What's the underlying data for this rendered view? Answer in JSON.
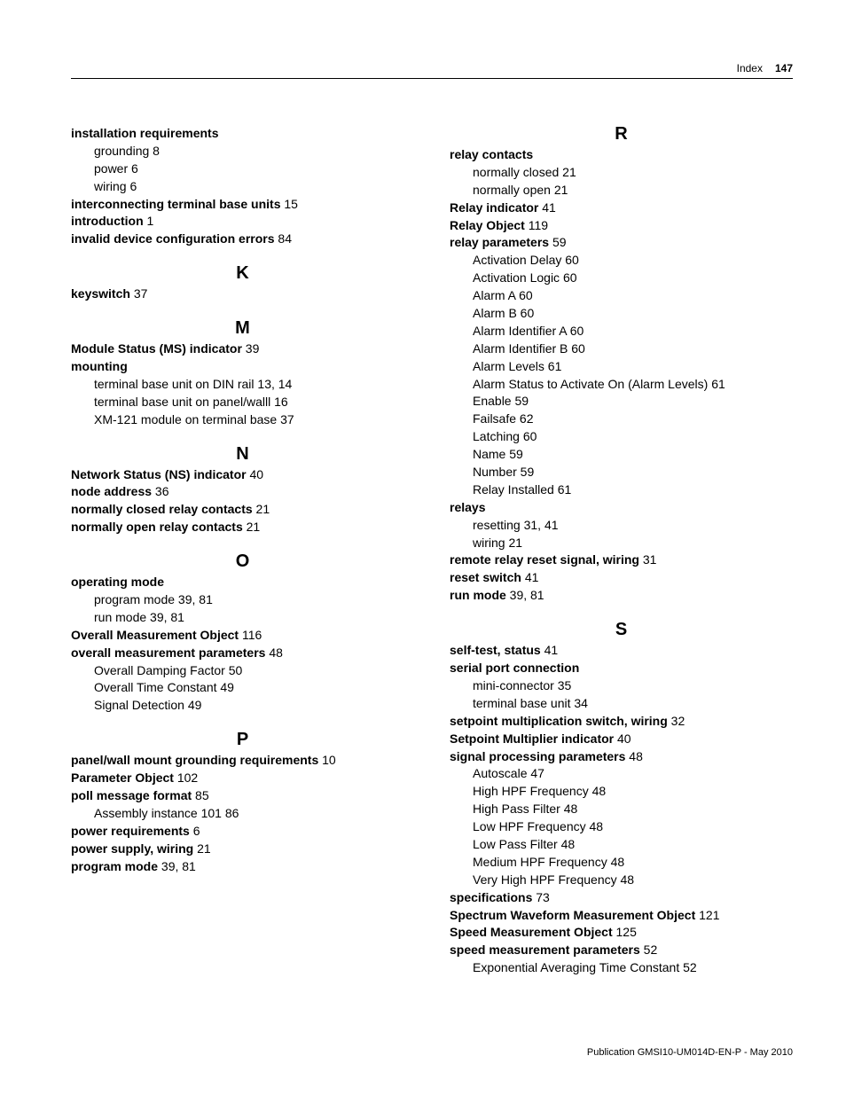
{
  "header": {
    "label": "Index",
    "page": "147"
  },
  "footer": {
    "text": "Publication GMSI10-UM014D-EN-P - May 2010"
  },
  "left": [
    {
      "type": "entry",
      "term": "installation requirements",
      "pages": ""
    },
    {
      "type": "sub",
      "text": "grounding 8"
    },
    {
      "type": "sub",
      "text": "power 6"
    },
    {
      "type": "sub",
      "text": "wiring 6"
    },
    {
      "type": "entry",
      "term": "interconnecting terminal base units",
      "pages": " 15"
    },
    {
      "type": "entry",
      "term": "introduction",
      "pages": " 1"
    },
    {
      "type": "entry",
      "term": "invalid device configuration errors",
      "pages": " 84"
    },
    {
      "type": "letter",
      "text": "K"
    },
    {
      "type": "entry",
      "term": "keyswitch",
      "pages": " 37"
    },
    {
      "type": "letter",
      "text": "M"
    },
    {
      "type": "entry",
      "term": "Module Status (MS) indicator",
      "pages": " 39"
    },
    {
      "type": "entry",
      "term": "mounting",
      "pages": ""
    },
    {
      "type": "sub",
      "text": "terminal base unit on DIN rail 13, 14"
    },
    {
      "type": "sub",
      "text": "terminal base unit on panel/walll 16"
    },
    {
      "type": "sub",
      "text": "XM-121 module on terminal base 37"
    },
    {
      "type": "letter",
      "text": "N"
    },
    {
      "type": "entry",
      "term": "Network Status (NS) indicator",
      "pages": " 40"
    },
    {
      "type": "entry",
      "term": "node address",
      "pages": " 36"
    },
    {
      "type": "entry",
      "term": "normally closed relay contacts",
      "pages": " 21"
    },
    {
      "type": "entry",
      "term": "normally open relay contacts",
      "pages": " 21"
    },
    {
      "type": "letter",
      "text": "O"
    },
    {
      "type": "entry",
      "term": "operating mode",
      "pages": ""
    },
    {
      "type": "sub",
      "text": "program mode 39, 81"
    },
    {
      "type": "sub",
      "text": "run mode 39, 81"
    },
    {
      "type": "entry",
      "term": "Overall Measurement Object",
      "pages": " 116"
    },
    {
      "type": "entry",
      "term": "overall measurement parameters",
      "pages": " 48"
    },
    {
      "type": "sub",
      "text": "Overall Damping Factor 50"
    },
    {
      "type": "sub",
      "text": "Overall Time Constant 49"
    },
    {
      "type": "sub",
      "text": "Signal Detection 49"
    },
    {
      "type": "letter",
      "text": "P"
    },
    {
      "type": "entry",
      "term": "panel/wall mount grounding requirements",
      "pages": " 10"
    },
    {
      "type": "entry",
      "term": "Parameter Object",
      "pages": " 102"
    },
    {
      "type": "entry",
      "term": "poll message format",
      "pages": " 85"
    },
    {
      "type": "sub",
      "text": "Assembly instance 101 86"
    },
    {
      "type": "entry",
      "term": "power requirements",
      "pages": " 6"
    },
    {
      "type": "entry",
      "term": "power supply, wiring",
      "pages": " 21"
    },
    {
      "type": "entry",
      "term": "program mode",
      "pages": " 39, 81"
    }
  ],
  "right": [
    {
      "type": "letter",
      "text": "R"
    },
    {
      "type": "entry",
      "term": "relay contacts",
      "pages": ""
    },
    {
      "type": "sub",
      "text": "normally closed 21"
    },
    {
      "type": "sub",
      "text": "normally open 21"
    },
    {
      "type": "entry",
      "term": "Relay indicator",
      "pages": " 41"
    },
    {
      "type": "entry",
      "term": "Relay Object",
      "pages": " 119"
    },
    {
      "type": "entry",
      "term": "relay parameters",
      "pages": " 59"
    },
    {
      "type": "sub",
      "text": "Activation Delay 60"
    },
    {
      "type": "sub",
      "text": "Activation Logic 60"
    },
    {
      "type": "sub",
      "text": "Alarm A 60"
    },
    {
      "type": "sub",
      "text": "Alarm B 60"
    },
    {
      "type": "sub",
      "text": "Alarm Identifier A 60"
    },
    {
      "type": "sub",
      "text": "Alarm Identifier B 60"
    },
    {
      "type": "sub",
      "text": "Alarm Levels 61"
    },
    {
      "type": "sub",
      "text": "Alarm Status to Activate On (Alarm Levels) 61"
    },
    {
      "type": "sub",
      "text": "Enable 59"
    },
    {
      "type": "sub",
      "text": "Failsafe 62"
    },
    {
      "type": "sub",
      "text": "Latching 60"
    },
    {
      "type": "sub",
      "text": "Name 59"
    },
    {
      "type": "sub",
      "text": "Number 59"
    },
    {
      "type": "sub",
      "text": "Relay Installed 61"
    },
    {
      "type": "entry",
      "term": "relays",
      "pages": ""
    },
    {
      "type": "sub",
      "text": "resetting 31, 41"
    },
    {
      "type": "sub",
      "text": "wiring 21"
    },
    {
      "type": "entry",
      "term": "remote relay reset signal, wiring",
      "pages": " 31"
    },
    {
      "type": "entry",
      "term": "reset switch",
      "pages": " 41"
    },
    {
      "type": "entry",
      "term": "run mode",
      "pages": " 39, 81"
    },
    {
      "type": "letter",
      "text": "S"
    },
    {
      "type": "entry",
      "term": "self-test, status",
      "pages": " 41"
    },
    {
      "type": "entry",
      "term": "serial port connection",
      "pages": ""
    },
    {
      "type": "sub",
      "text": "mini-connector 35"
    },
    {
      "type": "sub",
      "text": "terminal base unit 34"
    },
    {
      "type": "entry",
      "term": "setpoint multiplication switch, wiring",
      "pages": " 32"
    },
    {
      "type": "entry",
      "term": "Setpoint Multiplier indicator",
      "pages": " 40"
    },
    {
      "type": "entry",
      "term": "signal processing parameters",
      "pages": " 48"
    },
    {
      "type": "sub",
      "text": "Autoscale 47"
    },
    {
      "type": "sub",
      "text": "High HPF Frequency 48"
    },
    {
      "type": "sub",
      "text": "High Pass Filter 48"
    },
    {
      "type": "sub",
      "text": "Low HPF Frequency 48"
    },
    {
      "type": "sub",
      "text": "Low Pass Filter 48"
    },
    {
      "type": "sub",
      "text": "Medium HPF Frequency 48"
    },
    {
      "type": "sub",
      "text": "Very High HPF Frequency 48"
    },
    {
      "type": "entry",
      "term": "specifications",
      "pages": " 73"
    },
    {
      "type": "entry",
      "term": "Spectrum Waveform Measurement Object",
      "pages": " 121"
    },
    {
      "type": "entry",
      "term": "Speed Measurement Object",
      "pages": " 125"
    },
    {
      "type": "entry",
      "term": "speed measurement parameters",
      "pages": " 52"
    },
    {
      "type": "sub",
      "text": "Exponential Averaging Time Constant 52"
    }
  ]
}
